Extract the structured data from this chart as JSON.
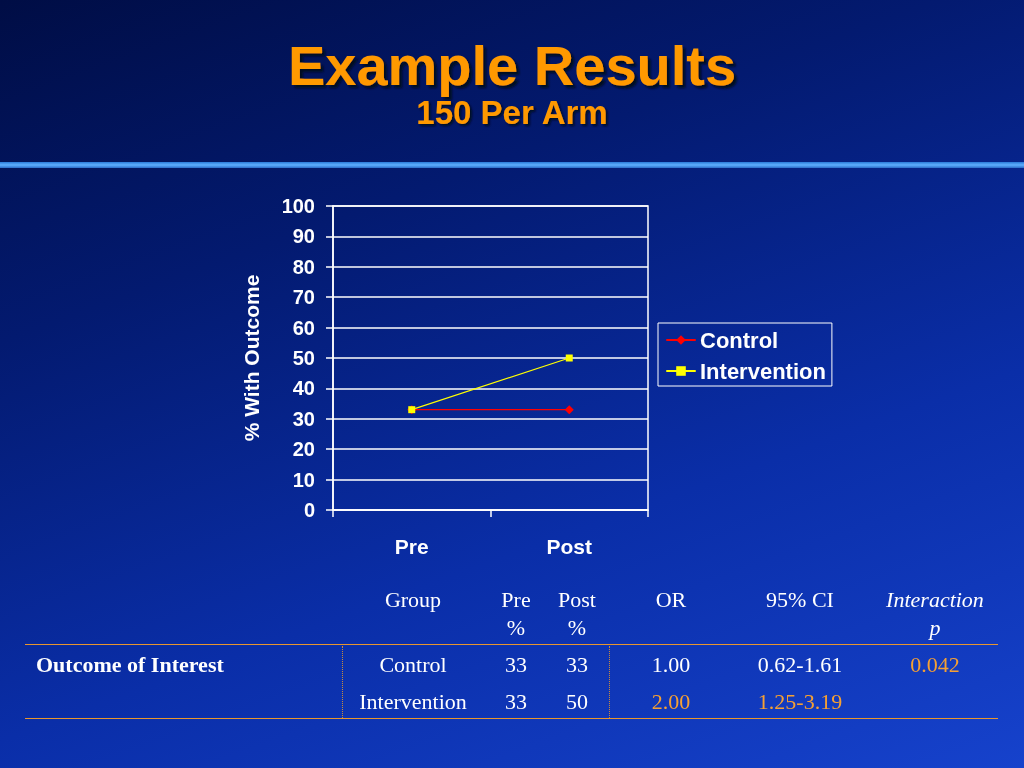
{
  "chart_data": {
    "type": "line",
    "title": "Example Results",
    "subtitle": "150 Per Arm",
    "ylabel": "% With Outcome",
    "categories": [
      "Pre",
      "Post"
    ],
    "series": [
      {
        "name": "Control",
        "color": "#ff0000",
        "marker": "diamond",
        "values": [
          33,
          33
        ]
      },
      {
        "name": "Intervention",
        "color": "#ffff00",
        "marker": "square",
        "values": [
          33,
          50
        ]
      }
    ],
    "ylim": [
      0,
      100
    ],
    "yticks": [
      0,
      10,
      20,
      30,
      40,
      50,
      60,
      70,
      80,
      90,
      100
    ],
    "grid": "y",
    "legend": "right",
    "annotations": [
      "Group",
      "Pre %",
      "Post %",
      "OR",
      "95% CI",
      "Interaction p",
      "Outcome of Interest",
      "33",
      "33",
      "1.00",
      "0.62-1.61",
      "0.042",
      "33",
      "50",
      "2.00",
      "1.25-3.19"
    ]
  }
}
